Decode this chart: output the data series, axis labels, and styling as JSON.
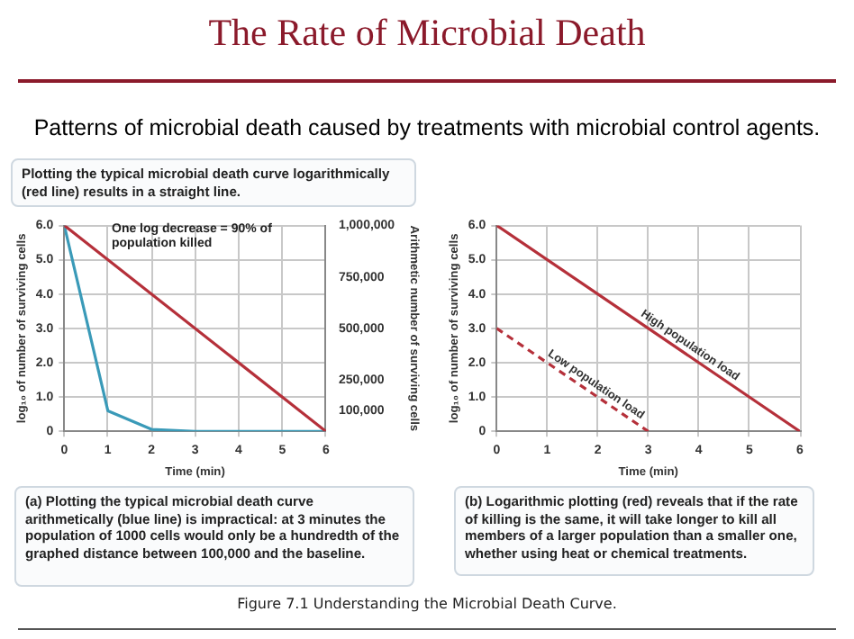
{
  "chart_data": [
    {
      "type": "line",
      "title": "The Rate of Microbial Death",
      "subtitle": "Patterns of microbial death caused by treatments with microbial control agents.",
      "xlabel": "Time (min)",
      "ylabel": "log₁₀ of number of surviving cells",
      "y2label": "Arithmetic number of surviving cells",
      "xlim": [
        0,
        6
      ],
      "xticks": [
        0,
        1,
        2,
        3,
        4,
        5,
        6
      ],
      "ylim": [
        0,
        6
      ],
      "yticks": [
        0,
        {
          "value": 1,
          "label": "1.0"
        },
        {
          "value": 2,
          "label": "2.0"
        },
        {
          "value": 3,
          "label": "3.0"
        },
        {
          "value": 4,
          "label": "4.0"
        },
        {
          "value": 5,
          "label": "5.0"
        },
        {
          "value": 6,
          "label": "6.0"
        }
      ],
      "y2lim": [
        0,
        1000000
      ],
      "y2ticks": [
        {
          "value": 100000,
          "label": "100,000"
        },
        {
          "value": 250000,
          "label": "250,000"
        },
        {
          "value": 500000,
          "label": "500,000"
        },
        {
          "value": 750000,
          "label": "750,000"
        },
        {
          "value": 1000000,
          "label": "1,000,000"
        }
      ],
      "grid": true,
      "legend": false,
      "marker": "none",
      "series": [
        {
          "color": "#b5303a",
          "x": [
            0,
            6
          ],
          "values": [
            6,
            0
          ]
        },
        {
          "color": "#3a9ab8",
          "axis": "y2",
          "x": [
            0,
            1,
            2,
            3,
            4,
            5,
            6
          ],
          "values": [
            1000000,
            100000,
            10000,
            0,
            0,
            0,
            0
          ]
        }
      ],
      "annotations": [
        "Plotting the typical microbial death curve logarithmically (red line) results in a straight line.",
        "One log decrease = 90% of population killed",
        "(a) Plotting the typical microbial death curve arithmetically (blue line) is impractical: at 3 minutes the population of 1000 cells would only be a hundredth of the graphed distance between 100,000 and the baseline.",
        "Figure 7.1 Understanding the Microbial Death Curve."
      ]
    },
    {
      "type": "line",
      "xlabel": "Time (min)",
      "ylabel": "log₁₀ of number of surviving cells",
      "xlim": [
        0,
        6
      ],
      "xticks": [
        0,
        1,
        2,
        3,
        4,
        5,
        6
      ],
      "ylim": [
        0,
        6
      ],
      "yticks": [
        0,
        {
          "value": 1,
          "label": "1.0"
        },
        {
          "value": 2,
          "label": "2.0"
        },
        {
          "value": 3,
          "label": "3.0"
        },
        {
          "value": 4,
          "label": "4.0"
        },
        {
          "value": 5,
          "label": "5.0"
        },
        {
          "value": 6,
          "label": "6.0"
        }
      ],
      "grid": true,
      "legend": false,
      "marker": "none",
      "series": [
        {
          "name": "High population load",
          "color": "#b5303a",
          "x": [
            0,
            6
          ],
          "values": [
            6,
            0
          ],
          "line_style": "solid"
        },
        {
          "name": "Low population load",
          "color": "#b5303a",
          "x": [
            0,
            3
          ],
          "values": [
            3,
            0
          ],
          "line_style": "dashed"
        }
      ],
      "annotations": [
        "(b) Logarithmic plotting (red) reveals that if the rate of killing is the same, it will take longer to kill all members of a larger population than a smaller one, whether using heat or chemical treatments."
      ]
    }
  ]
}
